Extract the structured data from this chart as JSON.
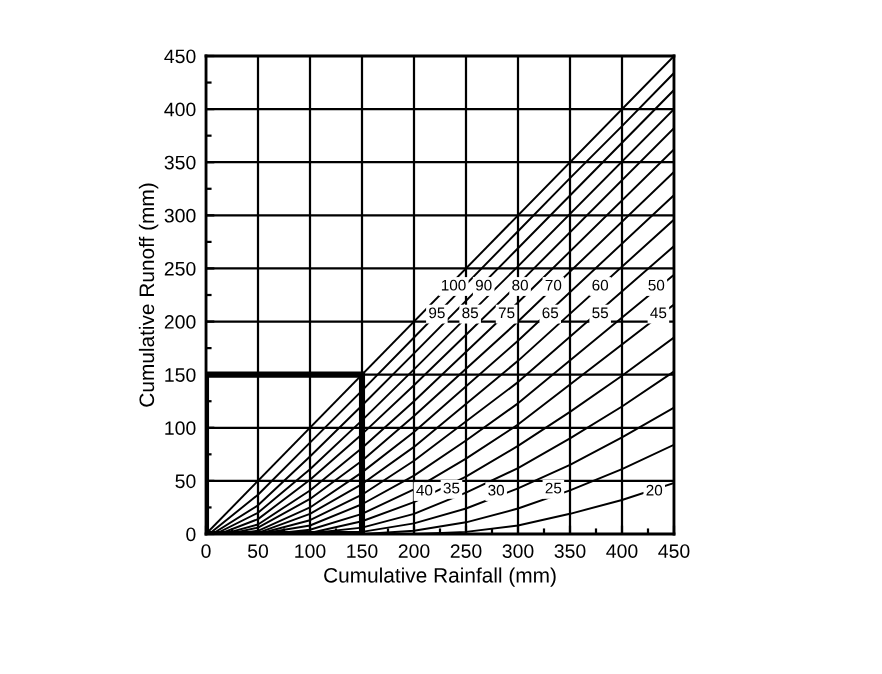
{
  "chart_data": {
    "type": "line",
    "xlabel": "Cumulative Rainfall (mm)",
    "ylabel": "Cumulative Runoff (mm)",
    "xlim": [
      0,
      450
    ],
    "ylim": [
      0,
      450
    ],
    "xticks": [
      0,
      50,
      100,
      150,
      200,
      250,
      300,
      350,
      400,
      450
    ],
    "yticks": [
      0,
      50,
      100,
      150,
      200,
      250,
      300,
      350,
      400,
      450
    ],
    "grid": true,
    "marker": "none",
    "line_style": "solid",
    "series": [
      {
        "color": "#000000",
        "x": [
          0,
          450
        ],
        "values": [
          0,
          450
        ]
      },
      {
        "color": "#000000",
        "x": [
          3,
          50,
          100,
          150,
          200,
          250,
          300,
          350,
          400,
          450
        ],
        "values": [
          0,
          37,
          86,
          135,
          185,
          235,
          285,
          335,
          384,
          434
        ]
      },
      {
        "color": "#000000",
        "x": [
          6,
          50,
          100,
          150,
          200,
          300,
          450
        ],
        "values": [
          0,
          27,
          73,
          121,
          170,
          269,
          418
        ]
      },
      {
        "color": "#000000",
        "x": [
          9,
          50,
          100,
          150,
          200,
          300,
          450
        ],
        "values": [
          0,
          20,
          61,
          107,
          155,
          252,
          400
        ]
      },
      {
        "color": "#000000",
        "x": [
          13,
          50,
          100,
          150,
          200,
          300,
          450
        ],
        "values": [
          0,
          14,
          51,
          94,
          140,
          235,
          382
        ]
      },
      {
        "color": "#000000",
        "x": [
          17,
          50,
          100,
          150,
          200,
          300,
          450
        ],
        "values": [
          0,
          9,
          41,
          81,
          125,
          218,
          362
        ]
      },
      {
        "color": "#000000",
        "x": [
          22,
          50,
          100,
          150,
          200,
          300,
          450
        ],
        "values": [
          0,
          6,
          33,
          69,
          111,
          200,
          341
        ]
      },
      {
        "color": "#000000",
        "x": [
          27,
          50,
          100,
          150,
          200,
          300,
          450
        ],
        "values": [
          0,
          3,
          25,
          58,
          96,
          182,
          319
        ]
      },
      {
        "color": "#000000",
        "x": [
          34,
          50,
          100,
          150,
          200,
          300,
          450
        ],
        "values": [
          0,
          1,
          19,
          47,
          82,
          163,
          296
        ]
      },
      {
        "color": "#000000",
        "x": [
          42,
          50,
          100,
          150,
          200,
          300,
          450
        ],
        "values": [
          0,
          0,
          13,
          37,
          69,
          143,
          271
        ]
      },
      {
        "color": "#000000",
        "x": [
          51,
          100,
          150,
          200,
          250,
          300,
          450
        ],
        "values": [
          0,
          8,
          28,
          55,
          88,
          123,
          244
        ]
      },
      {
        "color": "#000000",
        "x": [
          62,
          100,
          150,
          200,
          250,
          300,
          450
        ],
        "values": [
          0,
          4,
          19,
          42,
          71,
          103,
          216
        ]
      },
      {
        "color": "#000000",
        "x": [
          76,
          100,
          150,
          200,
          250,
          300,
          350,
          400,
          450
        ],
        "values": [
          0,
          1,
          12,
          30,
          54,
          83,
          115,
          149,
          185
        ]
      },
      {
        "color": "#000000",
        "x": [
          94,
          150,
          200,
          250,
          300,
          350,
          400,
          450
        ],
        "values": [
          0,
          6,
          19,
          39,
          62,
          90,
          120,
          153
        ]
      },
      {
        "color": "#000000",
        "x": [
          119,
          150,
          200,
          250,
          300,
          350,
          400,
          450
        ],
        "values": [
          0,
          2,
          10,
          24,
          43,
          65,
          91,
          119
        ]
      },
      {
        "color": "#000000",
        "x": [
          152,
          200,
          250,
          300,
          350,
          400,
          450
        ],
        "values": [
          0,
          3,
          11,
          24,
          41,
          61,
          84
        ]
      },
      {
        "color": "#000000",
        "x": [
          203,
          250,
          300,
          350,
          400,
          450
        ],
        "values": [
          0,
          2,
          8,
          19,
          32,
          48
        ]
      }
    ],
    "annotations": [
      {
        "text": "100",
        "x": 238,
        "y": 233
      },
      {
        "text": "90",
        "x": 267,
        "y": 233
      },
      {
        "text": "80",
        "x": 302,
        "y": 233
      },
      {
        "text": "70",
        "x": 334,
        "y": 233
      },
      {
        "text": "60",
        "x": 379,
        "y": 233
      },
      {
        "text": "50",
        "x": 433,
        "y": 233
      },
      {
        "text": "95",
        "x": 222,
        "y": 207
      },
      {
        "text": "85",
        "x": 254,
        "y": 207
      },
      {
        "text": "75",
        "x": 289,
        "y": 207
      },
      {
        "text": "65",
        "x": 331,
        "y": 207
      },
      {
        "text": "55",
        "x": 379,
        "y": 207
      },
      {
        "text": "45",
        "x": 435,
        "y": 207
      },
      {
        "text": "40",
        "x": 210,
        "y": 40
      },
      {
        "text": "35",
        "x": 236,
        "y": 42
      },
      {
        "text": "30",
        "x": 279,
        "y": 40
      },
      {
        "text": "25",
        "x": 334,
        "y": 42
      },
      {
        "text": "20",
        "x": 431,
        "y": 40
      }
    ]
  }
}
